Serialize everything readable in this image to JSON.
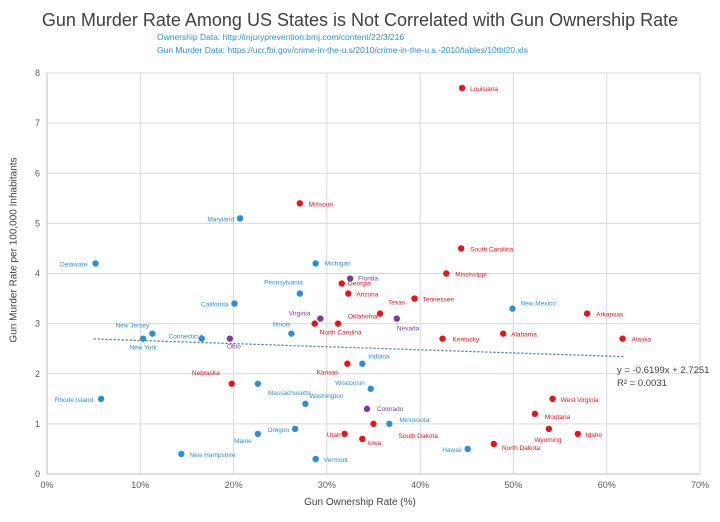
{
  "chart_data": {
    "type": "scatter",
    "title": "Gun Murder Rate Among US States is Not Correlated with Gun Ownership Rate",
    "subtitle_lines": [
      "Ownership Data: http://injuryprevention.bmj.com/content/22/3/216",
      "Gun Murder Data: https://ucr.fbi.gov/crime-in-the-u.s/2010/crime-in-the-u.s.-2010/tables/10tbl20.xls"
    ],
    "xlabel": "Gun Ownership Rate (%)",
    "ylabel": "Gun Murder Rate per 100,000 Inhabitants",
    "xlim": [
      0,
      70
    ],
    "ylim": [
      0,
      8
    ],
    "xticks": [
      0,
      10,
      20,
      30,
      40,
      50,
      60,
      70
    ],
    "xtick_labels": [
      "0%",
      "10%",
      "20%",
      "30%",
      "40%",
      "50%",
      "60%",
      "70%"
    ],
    "yticks": [
      0,
      1,
      2,
      3,
      4,
      5,
      6,
      7,
      8
    ],
    "ytick_labels": [
      "0",
      "1",
      "2",
      "3",
      "4",
      "5",
      "6",
      "7",
      "8"
    ],
    "grid": true,
    "colors": {
      "red": "#e8141b",
      "blue": "#2e8fd0",
      "purple": "#7d3c98",
      "trend": "#2e6db5"
    },
    "trendline": {
      "slope": -0.6199,
      "intercept": 2.7251,
      "x_range": [
        5,
        62
      ],
      "equation": "y = -0.6199x + 2.7251",
      "r2": "R² = 0.0031"
    },
    "points": [
      {
        "label": "Louisiana",
        "x": 44.5,
        "y": 7.7,
        "color": "red"
      },
      {
        "label": "Missouri",
        "x": 27.1,
        "y": 5.4,
        "color": "red"
      },
      {
        "label": "Maryland",
        "x": 20.7,
        "y": 5.1,
        "color": "blue"
      },
      {
        "label": "South Carolina",
        "x": 44.4,
        "y": 4.5,
        "color": "red"
      },
      {
        "label": "Delaware",
        "x": 5.2,
        "y": 4.2,
        "color": "blue"
      },
      {
        "label": "Michigan",
        "x": 28.8,
        "y": 4.2,
        "color": "blue"
      },
      {
        "label": "Mississippi",
        "x": 42.8,
        "y": 4.0,
        "color": "red"
      },
      {
        "label": "Florida",
        "x": 32.5,
        "y": 3.9,
        "color": "purple"
      },
      {
        "label": "Georgia",
        "x": 31.6,
        "y": 3.8,
        "color": "red"
      },
      {
        "label": "Pennsylvania",
        "x": 27.1,
        "y": 3.6,
        "color": "blue"
      },
      {
        "label": "Arizona",
        "x": 32.3,
        "y": 3.6,
        "color": "red"
      },
      {
        "label": "Tennessee",
        "x": 39.4,
        "y": 3.5,
        "color": "red"
      },
      {
        "label": "California",
        "x": 20.1,
        "y": 3.4,
        "color": "blue"
      },
      {
        "label": "New Mexico",
        "x": 49.9,
        "y": 3.3,
        "color": "blue"
      },
      {
        "label": "Texas",
        "x": 35.7,
        "y": 3.2,
        "color": "red"
      },
      {
        "label": "Arkansas",
        "x": 57.9,
        "y": 3.2,
        "color": "red"
      },
      {
        "label": "Virginia",
        "x": 29.3,
        "y": 3.1,
        "color": "purple"
      },
      {
        "label": "Nevada",
        "x": 37.5,
        "y": 3.1,
        "color": "purple"
      },
      {
        "label": "Oklahoma",
        "x": 31.2,
        "y": 3.0,
        "color": "red"
      },
      {
        "label": "North Carolina",
        "x": 28.7,
        "y": 3.0,
        "color": "red"
      },
      {
        "label": "New Jersey",
        "x": 11.3,
        "y": 2.8,
        "color": "blue"
      },
      {
        "label": "Illinois",
        "x": 26.2,
        "y": 2.8,
        "color": "blue"
      },
      {
        "label": "Alabama",
        "x": 48.9,
        "y": 2.8,
        "color": "red"
      },
      {
        "label": "New York",
        "x": 10.3,
        "y": 2.7,
        "color": "blue"
      },
      {
        "label": "Connecticut",
        "x": 16.6,
        "y": 2.7,
        "color": "blue"
      },
      {
        "label": "Ohio",
        "x": 19.6,
        "y": 2.7,
        "color": "purple"
      },
      {
        "label": "Kentucky",
        "x": 42.4,
        "y": 2.7,
        "color": "red"
      },
      {
        "label": "Alaska",
        "x": 61.7,
        "y": 2.7,
        "color": "red"
      },
      {
        "label": "Kansas",
        "x": 32.2,
        "y": 2.2,
        "color": "red"
      },
      {
        "label": "Indiana",
        "x": 33.8,
        "y": 2.2,
        "color": "blue"
      },
      {
        "label": "Nebraska",
        "x": 19.8,
        "y": 1.8,
        "color": "red"
      },
      {
        "label": "Massachusetts",
        "x": 22.6,
        "y": 1.8,
        "color": "blue"
      },
      {
        "label": "Wisconsin",
        "x": 34.7,
        "y": 1.7,
        "color": "blue"
      },
      {
        "label": "Rhode Island",
        "x": 5.8,
        "y": 1.5,
        "color": "blue"
      },
      {
        "label": "West Virginia",
        "x": 54.2,
        "y": 1.5,
        "color": "red"
      },
      {
        "label": "Washington",
        "x": 27.7,
        "y": 1.4,
        "color": "blue"
      },
      {
        "label": "Colorado",
        "x": 34.3,
        "y": 1.3,
        "color": "purple"
      },
      {
        "label": "Montana",
        "x": 52.3,
        "y": 1.2,
        "color": "red"
      },
      {
        "label": "Minnesota",
        "x": 36.7,
        "y": 1.0,
        "color": "blue"
      },
      {
        "label": "Oregon",
        "x": 26.6,
        "y": 0.9,
        "color": "blue"
      },
      {
        "label": "Utah",
        "x": 31.9,
        "y": 0.8,
        "color": "red"
      },
      {
        "label": "Wyoming",
        "x": 53.8,
        "y": 0.9,
        "color": "red"
      },
      {
        "label": "Idaho",
        "x": 56.9,
        "y": 0.8,
        "color": "red"
      },
      {
        "label": "Maine",
        "x": 22.6,
        "y": 0.8,
        "color": "blue"
      },
      {
        "label": "Iowa",
        "x": 33.8,
        "y": 0.7,
        "color": "red"
      },
      {
        "label": "South Dakota",
        "x": 35.0,
        "y": 1.0,
        "color": "red"
      },
      {
        "label": "North Dakota",
        "x": 47.9,
        "y": 0.6,
        "color": "red"
      },
      {
        "label": "Hawaii",
        "x": 45.1,
        "y": 0.5,
        "color": "blue"
      },
      {
        "label": "New Hampshire",
        "x": 14.4,
        "y": 0.4,
        "color": "blue"
      },
      {
        "label": "Vermont",
        "x": 28.8,
        "y": 0.3,
        "color": "blue"
      }
    ]
  }
}
